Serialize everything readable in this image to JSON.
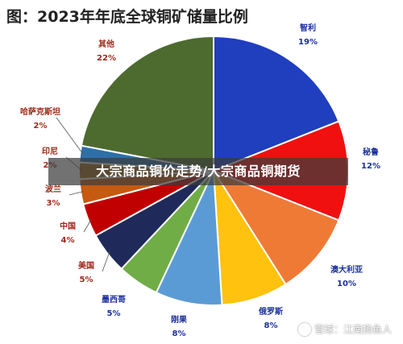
{
  "chart_data": {
    "type": "pie",
    "title": "图：2023年年底全球铜矿储量比例",
    "slices": [
      {
        "label": "智利",
        "value": 19,
        "display": "19%",
        "color": "#1f3fbf"
      },
      {
        "label": "秘鲁",
        "value": 12,
        "display": "12%",
        "color": "#f01010"
      },
      {
        "label": "澳大利亚",
        "value": 10,
        "display": "10%",
        "color": "#ee7a36"
      },
      {
        "label": "俄罗斯",
        "value": 8,
        "display": "8%",
        "color": "#ffc20e"
      },
      {
        "label": "刚果",
        "value": 8,
        "display": "8%",
        "color": "#5b9bd5"
      },
      {
        "label": "墨西哥",
        "value": 5,
        "display": "5%",
        "color": "#70ad47"
      },
      {
        "label": "美国",
        "value": 5,
        "display": "5%",
        "color": "#1f2a5a"
      },
      {
        "label": "中国",
        "value": 4,
        "display": "4%",
        "color": "#c00000"
      },
      {
        "label": "波兰",
        "value": 3,
        "display": "3%",
        "color": "#c55a11"
      },
      {
        "label": "印尼",
        "value": 2,
        "display": "2%",
        "color": "#a3701a"
      },
      {
        "label": "哈萨克斯坦",
        "value": 2,
        "display": "2%",
        "color": "#2e6fa8"
      },
      {
        "label": "其他",
        "value": 22,
        "display": "22%",
        "color": "#4d6b2f"
      }
    ],
    "label_colors": {
      "right": "#1a2f9c",
      "left": "#9c2a1a"
    }
  },
  "overlay_text": "大宗商品铜价走势/大宗商品铜期货",
  "watermark": "雪球：江南扬鱼人"
}
